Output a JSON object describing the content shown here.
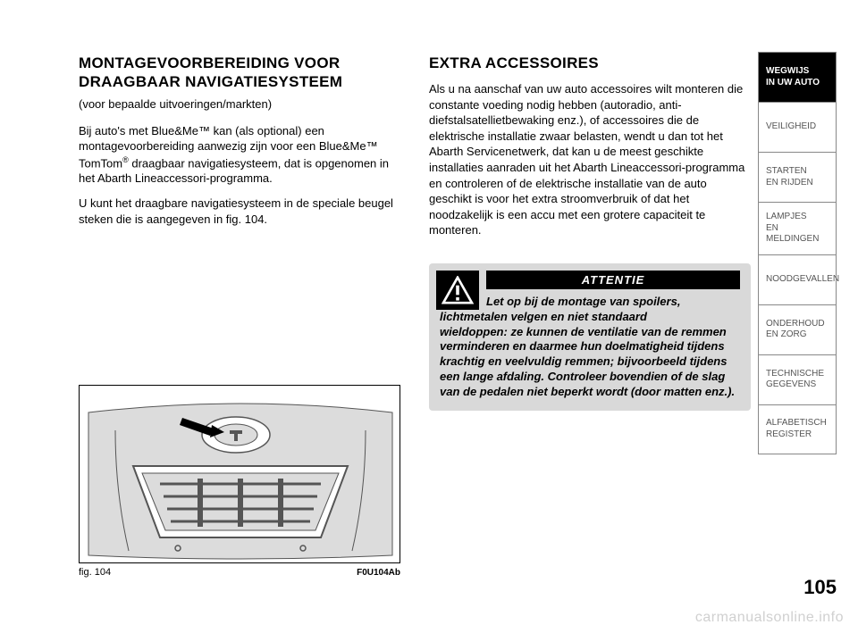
{
  "left": {
    "title_line1": "MONTAGEVOORBEREIDING VOOR",
    "title_line2": "DRAAGBAAR NAVIGATIESYSTEEM",
    "subtitle": "(voor bepaalde uitvoeringen/markten)",
    "p1_a": "Bij auto's met Blue&Me™ kan (als optional) een montagevoorbereiding aanwezig zijn voor een Blue&Me™ TomTom",
    "p1_sup": "®",
    "p1_b": " draagbaar navigatiesysteem, dat is opgenomen in het Abarth Lineaccessori-programma.",
    "p2": "U kunt het draagbare navigatiesysteem in de speciale beugel steken die is aangegeven in fig. 104."
  },
  "right": {
    "title": "EXTRA ACCESSOIRES",
    "p1": "Als u na aanschaf van uw auto accessoires wilt monteren die constante voeding nodig hebben (autoradio, anti-diefstalsatellietbewaking enz.), of accessoires die de elektrische installatie zwaar belasten, wendt u dan tot het Abarth Servicenetwerk, dat kan u de meest geschikte installaties aanraden uit het Abarth Lineaccessori-programma en controleren of de elektrische installatie van de auto geschikt is voor het extra stroomverbruik of dat het noodzakelijk is een accu met een grotere capaciteit te monteren."
  },
  "warning": {
    "header": "ATTENTIE",
    "text_first": "Let op bij de montage van spoilers, lichtmetalen velgen en niet standaard",
    "text_rest": "wieldoppen: ze kunnen de ventilatie van de remmen verminderen en daarmee hun doelmatigheid tijdens krachtig en veelvuldig remmen; bijvoorbeeld tijdens een lange afdaling. Controleer bovendien of de slag van de pedalen niet beperkt wordt (door matten enz.)."
  },
  "figure": {
    "caption": "fig. 104",
    "ref": "F0U104Ab",
    "fill": "#dcdcdc",
    "stroke": "#555555"
  },
  "tabs": [
    {
      "label": "WEGWIJS\nIN UW AUTO",
      "active": true
    },
    {
      "label": "VEILIGHEID",
      "active": false
    },
    {
      "label": "STARTEN\nEN RIJDEN",
      "active": false
    },
    {
      "label": "LAMPJES\nEN MELDINGEN",
      "active": false
    },
    {
      "label": "NOODGEVALLEN",
      "active": false
    },
    {
      "label": "ONDERHOUD\nEN ZORG",
      "active": false
    },
    {
      "label": "TECHNISCHE\nGEGEVENS",
      "active": false
    },
    {
      "label": "ALFABETISCH\nREGISTER",
      "active": false
    }
  ],
  "page_number": "105",
  "watermark": "carmanualsonline.info",
  "colors": {
    "tab_border": "#888888",
    "tab_text": "#555555",
    "warning_bg": "#d9d9d9",
    "watermark": "#d0d0d0"
  }
}
